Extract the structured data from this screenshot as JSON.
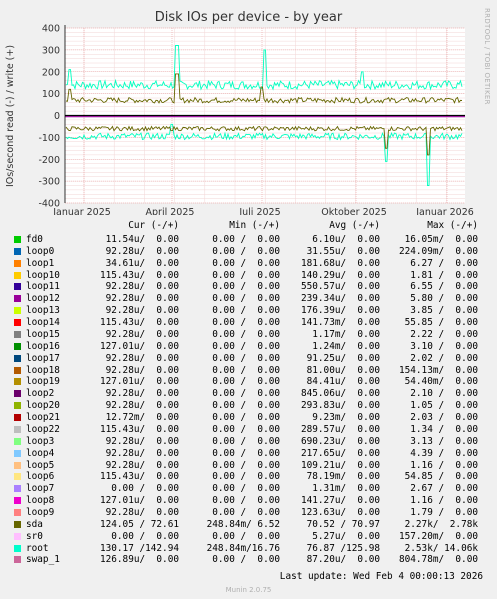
{
  "chart_data": {
    "type": "line",
    "title": "Disk IOs per device - by year",
    "ylabel": "IOs/second read (-) / write (+)",
    "ylim": [
      -400,
      400
    ],
    "y_ticks": [
      "400",
      "300",
      "200",
      "100",
      "0",
      "-100",
      "-200",
      "-300",
      "-400"
    ],
    "x_ticks": [
      "Januar 2025",
      "April 2025",
      "Juli 2025",
      "Oktober 2025",
      "Januar 2026"
    ],
    "grid": true,
    "series": [
      {
        "name": "root",
        "color": "#00ffc0",
        "approx_write_level": 140,
        "approx_read_level": -95
      },
      {
        "name": "sda",
        "color": "#666600",
        "approx_write_level": 70,
        "approx_read_level": -60
      }
    ]
  },
  "side_label": "RRDTOOL / TOBI OETIKER",
  "legend_header": {
    "cur": "Cur (-/+)",
    "min": "Min (-/+)",
    "avg": "Avg (-/+)",
    "max": "Max (-/+)"
  },
  "legend": [
    {
      "name": "fd0",
      "color": "#00cc00",
      "cur": "11.54u/  0.00",
      "min": "0.00 /  0.00",
      "avg": "6.10u/  0.00",
      "max": "16.05m/  0.00"
    },
    {
      "name": "loop0",
      "color": "#0066b3",
      "cur": "92.28u/  0.00",
      "min": "0.00 /  0.00",
      "avg": "31.55u/  0.00",
      "max": "224.09m/  0.00"
    },
    {
      "name": "loop1",
      "color": "#ff8000",
      "cur": "34.61u/  0.00",
      "min": "0.00 /  0.00",
      "avg": "181.68u/  0.00",
      "max": "6.27 /  0.00"
    },
    {
      "name": "loop10",
      "color": "#ffcc00",
      "cur": "115.43u/  0.00",
      "min": "0.00 /  0.00",
      "avg": "140.29u/  0.00",
      "max": "1.81 /  0.00"
    },
    {
      "name": "loop11",
      "color": "#330099",
      "cur": "92.28u/  0.00",
      "min": "0.00 /  0.00",
      "avg": "550.57u/  0.00",
      "max": "6.55 /  0.00"
    },
    {
      "name": "loop12",
      "color": "#990099",
      "cur": "92.28u/  0.00",
      "min": "0.00 /  0.00",
      "avg": "239.34u/  0.00",
      "max": "5.80 /  0.00"
    },
    {
      "name": "loop13",
      "color": "#ccff00",
      "cur": "92.28u/  0.00",
      "min": "0.00 /  0.00",
      "avg": "176.39u/  0.00",
      "max": "3.85 /  0.00"
    },
    {
      "name": "loop14",
      "color": "#ff0000",
      "cur": "115.43u/  0.00",
      "min": "0.00 /  0.00",
      "avg": "141.73m/  0.00",
      "max": "55.85 /  0.00"
    },
    {
      "name": "loop15",
      "color": "#808080",
      "cur": "92.28u/  0.00",
      "min": "0.00 /  0.00",
      "avg": "1.17m/  0.00",
      "max": "2.22 /  0.00"
    },
    {
      "name": "loop16",
      "color": "#008f00",
      "cur": "127.01u/  0.00",
      "min": "0.00 /  0.00",
      "avg": "1.24m/  0.00",
      "max": "3.10 /  0.00"
    },
    {
      "name": "loop17",
      "color": "#00487d",
      "cur": "92.28u/  0.00",
      "min": "0.00 /  0.00",
      "avg": "91.25u/  0.00",
      "max": "2.02 /  0.00"
    },
    {
      "name": "loop18",
      "color": "#b35a00",
      "cur": "92.28u/  0.00",
      "min": "0.00 /  0.00",
      "avg": "81.00u/  0.00",
      "max": "154.13m/  0.00"
    },
    {
      "name": "loop19",
      "color": "#b38f00",
      "cur": "127.01u/  0.00",
      "min": "0.00 /  0.00",
      "avg": "84.41u/  0.00",
      "max": "54.40m/  0.00"
    },
    {
      "name": "loop2",
      "color": "#6b006b",
      "cur": "92.28u/  0.00",
      "min": "0.00 /  0.00",
      "avg": "845.06u/  0.00",
      "max": "2.10 /  0.00"
    },
    {
      "name": "loop20",
      "color": "#8fb300",
      "cur": "92.28u/  0.00",
      "min": "0.00 /  0.00",
      "avg": "293.83u/  0.00",
      "max": "1.05 /  0.00"
    },
    {
      "name": "loop21",
      "color": "#b30000",
      "cur": "12.72m/  0.00",
      "min": "0.00 /  0.00",
      "avg": "9.23m/  0.00",
      "max": "2.03 /  0.00"
    },
    {
      "name": "loop22",
      "color": "#bebebe",
      "cur": "115.43u/  0.00",
      "min": "0.00 /  0.00",
      "avg": "289.57u/  0.00",
      "max": "1.34 /  0.00"
    },
    {
      "name": "loop3",
      "color": "#80ff80",
      "cur": "92.28u/  0.00",
      "min": "0.00 /  0.00",
      "avg": "690.23u/  0.00",
      "max": "3.13 /  0.00"
    },
    {
      "name": "loop4",
      "color": "#80c9ff",
      "cur": "92.28u/  0.00",
      "min": "0.00 /  0.00",
      "avg": "217.65u/  0.00",
      "max": "4.39 /  0.00"
    },
    {
      "name": "loop5",
      "color": "#ffc080",
      "cur": "92.28u/  0.00",
      "min": "0.00 /  0.00",
      "avg": "109.21u/  0.00",
      "max": "1.16 /  0.00"
    },
    {
      "name": "loop6",
      "color": "#ffe680",
      "cur": "115.43u/  0.00",
      "min": "0.00 /  0.00",
      "avg": "78.19m/  0.00",
      "max": "54.85 /  0.00"
    },
    {
      "name": "loop7",
      "color": "#aa80ff",
      "cur": "0.00 /  0.00",
      "min": "0.00 /  0.00",
      "avg": "1.31m/  0.00",
      "max": "2.67 /  0.00"
    },
    {
      "name": "loop8",
      "color": "#ee00cc",
      "cur": "127.01u/  0.00",
      "min": "0.00 /  0.00",
      "avg": "141.27u/  0.00",
      "max": "1.16 /  0.00"
    },
    {
      "name": "loop9",
      "color": "#ff8080",
      "cur": "92.28u/  0.00",
      "min": "0.00 /  0.00",
      "avg": "123.63u/  0.00",
      "max": "1.79 /  0.00"
    },
    {
      "name": "sda",
      "color": "#666600",
      "cur": "124.05 / 72.61",
      "min": "248.84m/ 6.52",
      "avg": "70.52 / 70.97",
      "max": "2.27k/  2.78k"
    },
    {
      "name": "sr0",
      "color": "#ffbfff",
      "cur": "0.00 /  0.00",
      "min": "0.00 /  0.00",
      "avg": "5.27u/  0.00",
      "max": "157.20m/  0.00"
    },
    {
      "name": "root",
      "color": "#00ffcc",
      "cur": "130.17 /142.94",
      "min": "248.84m/16.76",
      "avg": "76.87 /125.98",
      "max": "2.53k/ 14.06k"
    },
    {
      "name": "swap_1",
      "color": "#cc6699",
      "cur": "126.89u/  0.00",
      "min": "0.00 /  0.00",
      "avg": "87.20u/  0.00",
      "max": "804.78m/  0.00"
    }
  ],
  "last_update": "Last update: Wed Feb  4 00:00:13 2026",
  "footer": "Munin 2.0.75"
}
